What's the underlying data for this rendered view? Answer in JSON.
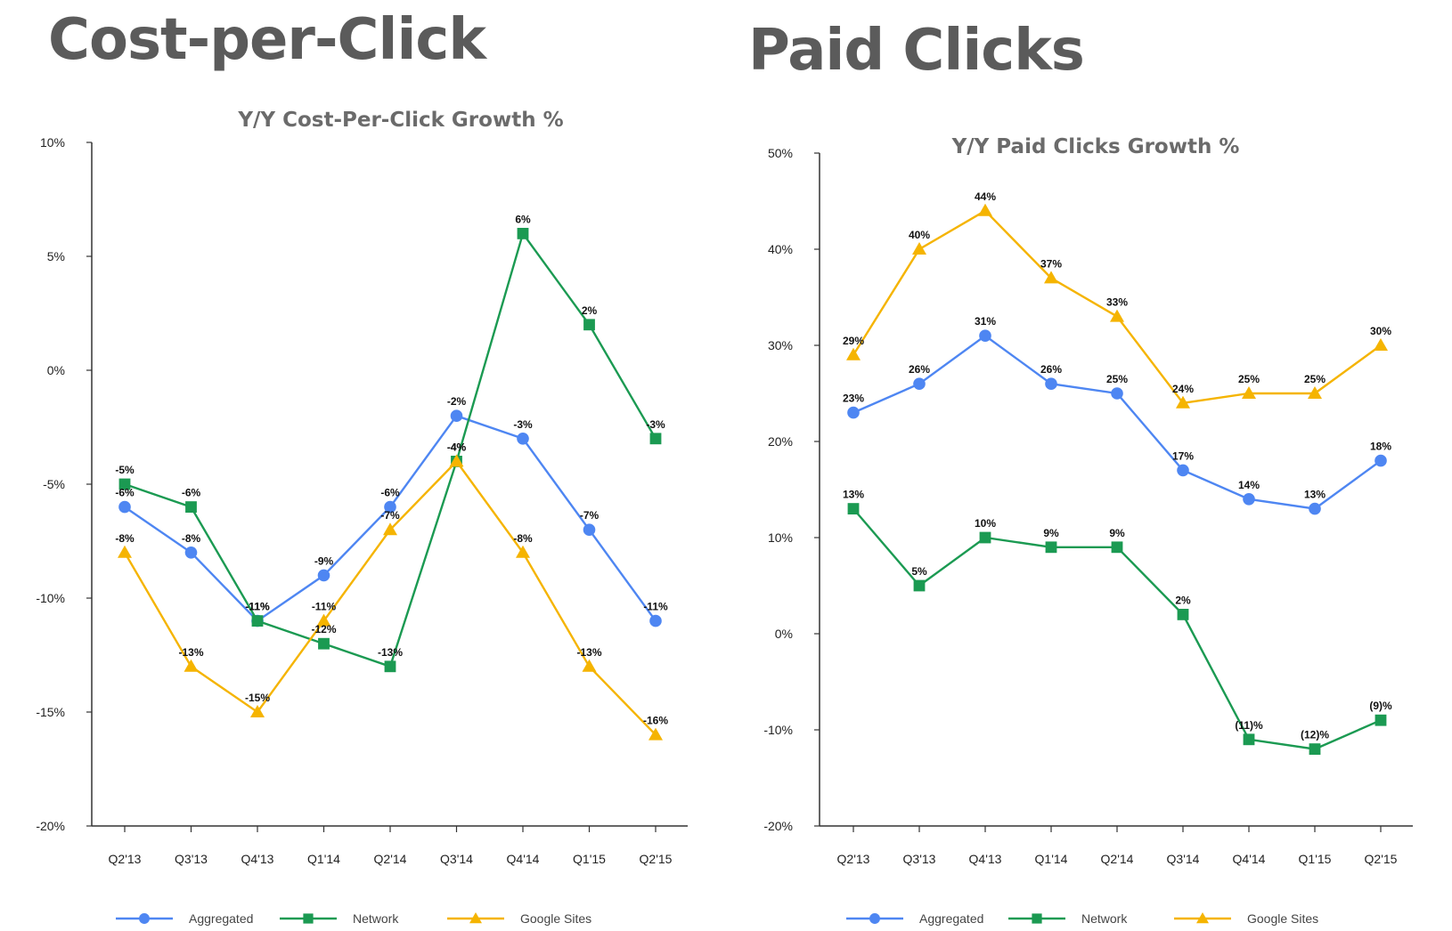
{
  "left": {
    "heading": "Cost-per-Click",
    "chart_data": {
      "type": "line",
      "title": "Y/Y Cost-Per-Click Growth %",
      "xlabel": "",
      "ylabel": "",
      "categories": [
        "Q2'13",
        "Q3'13",
        "Q4'13",
        "Q1'14",
        "Q2'14",
        "Q3'14",
        "Q4'14",
        "Q1'15",
        "Q2'15"
      ],
      "ylim": [
        -20,
        10
      ],
      "yticks": [
        10,
        5,
        0,
        -5,
        -10,
        -15,
        -20
      ],
      "ytick_labels": [
        "10%",
        "5%",
        "0%",
        "-5%",
        "-10%",
        "-15%",
        "-20%"
      ],
      "grid": false,
      "legend_position": "bottom",
      "series": [
        {
          "name": "Aggregated",
          "color": "#4e86f2",
          "marker": "circle",
          "values": [
            -6,
            -8,
            -11,
            -9,
            -6,
            -2,
            -3,
            -7,
            -11
          ],
          "labels": [
            "-6%",
            "-8%",
            "-11%",
            "-9%",
            "-6%",
            "-2%",
            "-3%",
            "-7%",
            "-11%"
          ]
        },
        {
          "name": "Network",
          "color": "#1b9a52",
          "marker": "square",
          "values": [
            -5,
            -6,
            -11,
            -12,
            -13,
            -4,
            6,
            2,
            -3
          ],
          "labels": [
            "-5%",
            "-6%",
            "-11%",
            "-12%",
            "-13%",
            "-4%",
            "6%",
            "2%",
            "-3%"
          ]
        },
        {
          "name": "Google Sites",
          "color": "#f5b400",
          "marker": "triangle",
          "values": [
            -8,
            -13,
            -15,
            -11,
            -7,
            -4,
            -8,
            -13,
            -16
          ],
          "labels": [
            "-8%",
            "-13%",
            "-15%",
            "-11%",
            "-7%",
            "-4%",
            "-8%",
            "-13%",
            "-16%"
          ]
        }
      ]
    }
  },
  "right": {
    "heading": "Paid Clicks",
    "chart_data": {
      "type": "line",
      "title": "Y/Y Paid Clicks Growth %",
      "xlabel": "",
      "ylabel": "",
      "categories": [
        "Q2'13",
        "Q3'13",
        "Q4'13",
        "Q1'14",
        "Q2'14",
        "Q3'14",
        "Q4'14",
        "Q1'15",
        "Q2'15"
      ],
      "ylim": [
        -20,
        50
      ],
      "yticks": [
        50,
        40,
        30,
        20,
        10,
        0,
        -10,
        -20
      ],
      "ytick_labels": [
        "50%",
        "40%",
        "30%",
        "20%",
        "10%",
        "0%",
        "-10%",
        "-20%"
      ],
      "grid": false,
      "legend_position": "bottom",
      "series": [
        {
          "name": "Aggregated",
          "color": "#4e86f2",
          "marker": "circle",
          "values": [
            23,
            26,
            31,
            26,
            25,
            17,
            14,
            13,
            18
          ],
          "labels": [
            "23%",
            "26%",
            "31%",
            "26%",
            "25%",
            "17%",
            "14%",
            "13%",
            "18%"
          ]
        },
        {
          "name": "Network",
          "color": "#1b9a52",
          "marker": "square",
          "values": [
            13,
            5,
            10,
            9,
            9,
            2,
            -11,
            -12,
            -9
          ],
          "labels": [
            "13%",
            "5%",
            "10%",
            "9%",
            "9%",
            "2%",
            "(11)%",
            "(12)%",
            "(9)%"
          ]
        },
        {
          "name": "Google Sites",
          "color": "#f5b400",
          "marker": "triangle",
          "values": [
            29,
            40,
            44,
            37,
            33,
            24,
            25,
            25,
            30
          ],
          "labels": [
            "29%",
            "40%",
            "44%",
            "37%",
            "33%",
            "24%",
            "25%",
            "25%",
            "30%"
          ]
        }
      ]
    }
  }
}
